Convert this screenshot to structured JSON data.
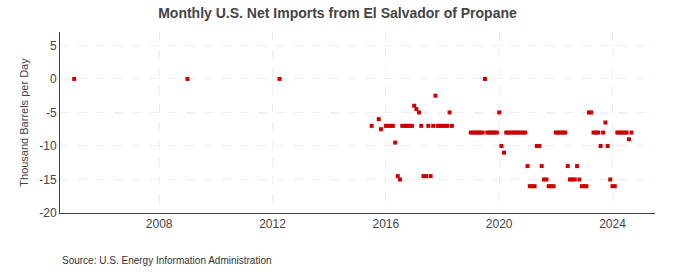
{
  "chart_data": {
    "type": "scatter",
    "title": "Monthly U.S. Net Imports from El Salvador of Propane",
    "ylabel": "Thousand Barrels per Day",
    "annotations": [
      "Source: U.S. Energy Information Administration"
    ],
    "color": "#cc0000",
    "marker": "square",
    "grid": true,
    "xlim": [
      2004.5,
      2025.5
    ],
    "xticks": [
      2008,
      2012,
      2016,
      2020,
      2024
    ],
    "ylim": [
      -20,
      7
    ],
    "yticks": [
      5,
      0,
      -5,
      -10,
      -15,
      -20
    ],
    "x": [
      2005.0,
      2009.0,
      2012.25,
      2019.5,
      2015.5,
      2015.75,
      2015.83,
      2016.0,
      2016.08,
      2016.17,
      2016.25,
      2016.33,
      2016.42,
      2016.5,
      2016.58,
      2016.67,
      2016.75,
      2016.83,
      2016.92,
      2017.0,
      2017.08,
      2017.17,
      2017.25,
      2017.33,
      2017.42,
      2017.5,
      2017.58,
      2017.67,
      2017.75,
      2017.83,
      2017.92,
      2018.0,
      2018.08,
      2018.17,
      2018.25,
      2018.33,
      2019.0,
      2019.08,
      2019.17,
      2019.25,
      2019.33,
      2019.42,
      2019.58,
      2019.67,
      2019.75,
      2019.83,
      2019.92,
      2020.0,
      2020.08,
      2020.17,
      2020.25,
      2020.33,
      2020.42,
      2020.5,
      2020.58,
      2020.67,
      2020.75,
      2020.83,
      2020.92,
      2021.0,
      2021.08,
      2021.17,
      2021.25,
      2021.33,
      2021.42,
      2021.5,
      2021.58,
      2021.67,
      2021.75,
      2021.83,
      2021.92,
      2022.0,
      2022.08,
      2022.17,
      2022.25,
      2022.33,
      2022.42,
      2022.5,
      2022.58,
      2022.67,
      2022.75,
      2022.83,
      2022.92,
      2023.0,
      2023.08,
      2023.17,
      2023.25,
      2023.33,
      2023.42,
      2023.5,
      2023.58,
      2023.67,
      2023.75,
      2023.83,
      2023.92,
      2024.0,
      2024.08,
      2024.17,
      2024.25,
      2024.33,
      2024.42,
      2024.5,
      2024.58,
      2024.67
    ],
    "values": [
      0,
      0,
      0,
      0,
      -7,
      -6,
      -7.5,
      -7,
      -7,
      -7,
      -7,
      -9.5,
      -14.5,
      -15,
      -7,
      -7,
      -7,
      -7,
      -7,
      -4,
      -4.5,
      -5,
      -7,
      -14.5,
      -14.5,
      -7,
      -14.5,
      -7,
      -2.5,
      -7,
      -7,
      -7,
      -7,
      -7,
      -5,
      -7,
      -8,
      -8,
      -8,
      -8,
      -8,
      -8,
      -8,
      -8,
      -8,
      -8,
      -8,
      -5,
      -10,
      -11,
      -8,
      -8,
      -8,
      -8,
      -8,
      -8,
      -8,
      -8,
      -8,
      -13,
      -16,
      -16,
      -16,
      -10,
      -10,
      -13,
      -15,
      -15,
      -16,
      -16,
      -16,
      -8,
      -8,
      -8,
      -8,
      -8,
      -13,
      -15,
      -15,
      -15,
      -13,
      -15,
      -16,
      -16,
      -16,
      -5,
      -5,
      -8,
      -8,
      -8,
      -10,
      -8,
      -6.5,
      -10,
      -15,
      -16,
      -16,
      -8,
      -8,
      -8,
      -8,
      -8,
      -9,
      -8
    ]
  }
}
